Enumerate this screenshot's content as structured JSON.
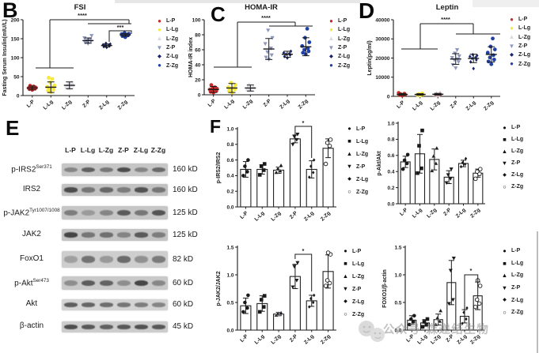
{
  "figure": {
    "panel_letters": {
      "B": "B",
      "C": "C",
      "D": "D",
      "E": "E",
      "F": "F"
    }
  },
  "chart_data": [
    {
      "id": "B",
      "type": "scatter",
      "title": "FSI",
      "ylabel": "Fasting Serum Insulin(mIU/L)",
      "categories": [
        "L-P",
        "L-Lg",
        "L-Zg",
        "Z-P",
        "Z-Lg",
        "Z-Zg"
      ],
      "ylim": [
        0,
        200
      ],
      "yticks": [
        0,
        50,
        100,
        150,
        200
      ],
      "ytick_decimals": 0,
      "legend_position": "right",
      "series": [
        {
          "name": "L-P",
          "marker": "circle",
          "color": "#c62a2a",
          "values": [
            15,
            17,
            18,
            19,
            20,
            20,
            21,
            22,
            24,
            26
          ],
          "mean": 20,
          "sd": 5
        },
        {
          "name": "L-Lg",
          "marker": "circle",
          "color": "#f6e83c",
          "values": [
            9,
            13,
            16,
            19,
            21,
            23,
            27,
            35,
            44,
            47
          ],
          "mean": 22,
          "sd": 14
        },
        {
          "name": "L-Zg",
          "marker": "triangle",
          "color": "#e7e7ef",
          "values": [
            19,
            24,
            27,
            30,
            34
          ],
          "mean": 27,
          "sd": 9
        },
        {
          "name": "Z-P",
          "marker": "triangle-down",
          "color": "#8f97bf",
          "values": [
            137,
            140,
            143,
            145,
            148,
            152,
            158
          ],
          "mean": 145,
          "sd": 7
        },
        {
          "name": "Z-Lg",
          "marker": "diamond",
          "color": "#18246e",
          "values": [
            127,
            129,
            131,
            132,
            133,
            134,
            136,
            138
          ],
          "mean": 132,
          "sd": 4
        },
        {
          "name": "Z-Zg",
          "marker": "circle",
          "color": "#2140a8",
          "values": [
            154,
            157,
            159,
            160,
            161,
            162,
            163,
            165
          ],
          "mean": 160,
          "sd": 4
        }
      ],
      "significance": [
        {
          "label": "****",
          "compare": "L groups vs Z groups"
        },
        {
          "label": "***",
          "compare": "Z-Lg vs Z-Zg"
        }
      ]
    },
    {
      "id": "C",
      "type": "scatter",
      "title": "HOMA-IR",
      "ylabel": "HOMA-IR index",
      "categories": [
        "L-P",
        "L-Lg",
        "L-Zg",
        "Z-P",
        "Z-Lg",
        "Z-Zg"
      ],
      "ylim": [
        0,
        100
      ],
      "yticks": [
        0,
        20,
        40,
        60,
        80,
        100
      ],
      "ytick_decimals": 0,
      "legend_position": "right",
      "series": [
        {
          "name": "L-P",
          "marker": "circle",
          "color": "#c62a2a",
          "values": [
            3,
            4,
            5,
            6,
            7,
            7,
            8,
            9,
            10,
            13
          ],
          "mean": 7,
          "sd": 4
        },
        {
          "name": "L-Lg",
          "marker": "circle",
          "color": "#f6e83c",
          "values": [
            3,
            5,
            7,
            8,
            9,
            10,
            13,
            16
          ],
          "mean": 9,
          "sd": 6
        },
        {
          "name": "L-Zg",
          "marker": "triangle",
          "color": "#e7e7ef",
          "values": [
            6,
            8,
            10,
            13
          ],
          "mean": 9,
          "sd": 4
        },
        {
          "name": "Z-P",
          "marker": "triangle-down",
          "color": "#8f97bf",
          "values": [
            47,
            50,
            53,
            57,
            62,
            68,
            76,
            86
          ],
          "mean": 61,
          "sd": 14
        },
        {
          "name": "Z-Lg",
          "marker": "diamond",
          "color": "#18246e",
          "values": [
            49,
            51,
            53,
            54,
            55,
            56,
            58
          ],
          "mean": 54,
          "sd": 4
        },
        {
          "name": "Z-Zg",
          "marker": "circle",
          "color": "#2140a8",
          "values": [
            54,
            56,
            58,
            60,
            62,
            65,
            70,
            76,
            88
          ],
          "mean": 64,
          "sd": 12
        }
      ],
      "significance": [
        {
          "label": "****",
          "compare": "L groups vs Z groups"
        }
      ]
    },
    {
      "id": "D",
      "type": "scatter",
      "title": "Leptin",
      "ylabel": "Leptin(pg/ml)",
      "categories": [
        "L-P",
        "L-Lg",
        "L-Zg",
        "Z-P",
        "Z-Lg",
        "Z-Zg"
      ],
      "ylim": [
        0,
        40000
      ],
      "yticks": [
        0,
        10000,
        20000,
        30000,
        40000
      ],
      "ytick_decimals": 0,
      "legend_position": "right",
      "series": [
        {
          "name": "L-P",
          "marker": "circle",
          "color": "#c62a2a",
          "values": [
            400,
            700,
            900,
            1100,
            1400,
            1800
          ],
          "mean": 1000,
          "sd": 500
        },
        {
          "name": "L-Lg",
          "marker": "circle",
          "color": "#f6e83c",
          "values": [
            500,
            800,
            1000,
            1200,
            1500
          ],
          "mean": 1000,
          "sd": 400
        },
        {
          "name": "L-Zg",
          "marker": "triangle",
          "color": "#e7a0a0",
          "values": [
            600,
            900,
            1100,
            1400,
            1700
          ],
          "mean": 1100,
          "sd": 450
        },
        {
          "name": "Z-P",
          "marker": "triangle-down",
          "color": "#8f97bf",
          "values": [
            14800,
            16500,
            18000,
            19000,
            19500,
            20200,
            21000,
            22500,
            24300
          ],
          "mean": 19500,
          "sd": 2800
        },
        {
          "name": "Z-Lg",
          "marker": "diamond",
          "color": "#18246e",
          "values": [
            14500,
            18000,
            19000,
            19800,
            20300,
            20800,
            21300,
            21800
          ],
          "mean": 19800,
          "sd": 2200
        },
        {
          "name": "Z-Zg",
          "marker": "circle",
          "color": "#2140a8",
          "values": [
            16800,
            18200,
            19200,
            20300,
            21500,
            22800,
            24500,
            26000,
            30200
          ],
          "mean": 21900,
          "sd": 4000
        }
      ],
      "significance": [
        {
          "label": "****",
          "compare": "L groups vs Z groups"
        }
      ]
    },
    {
      "id": "F1",
      "type": "bar",
      "ylabel": "p-IRS2/IRS2",
      "categories": [
        "L-P",
        "L-Lg",
        "L-Zg",
        "Z-P",
        "Z-Lg",
        "Z-Zg"
      ],
      "ylim": [
        0,
        1.0
      ],
      "yticks": [
        0,
        0.2,
        0.4,
        0.6,
        0.8,
        1.0
      ],
      "ytick_decimals": 1,
      "values": [
        0.48,
        0.48,
        0.47,
        0.87,
        0.48,
        0.75
      ],
      "errors": [
        0.1,
        0.06,
        0.04,
        0.05,
        0.11,
        0.12
      ],
      "points": [
        [
          0.4,
          0.45,
          0.52,
          0.6
        ],
        [
          0.41,
          0.47,
          0.52,
          0.55
        ],
        [
          0.44,
          0.46,
          0.49,
          0.53
        ],
        [
          0.8,
          0.86,
          0.9,
          0.93
        ],
        [
          0.38,
          0.44,
          0.52,
          0.6
        ],
        [
          0.55,
          0.78,
          0.82,
          0.86
        ]
      ],
      "point_markers": [
        "circle",
        "square",
        "triangle",
        "triangle-down",
        "diamond",
        "open-circle"
      ],
      "significance": [
        {
          "label": "*",
          "compare": "Z-P vs Z-Lg"
        }
      ]
    },
    {
      "id": "F2",
      "type": "bar",
      "ylabel": "p-Akt/Akt",
      "categories": [
        "L-P",
        "L-Lg",
        "L-Zg",
        "Z-P",
        "Z-Lg",
        "Z-Zg"
      ],
      "ylim": [
        0,
        1.0
      ],
      "yticks": [
        0,
        0.2,
        0.4,
        0.6,
        0.8,
        1.0
      ],
      "ytick_decimals": 1,
      "values": [
        0.52,
        0.62,
        0.55,
        0.33,
        0.5,
        0.38
      ],
      "errors": [
        0.07,
        0.24,
        0.13,
        0.08,
        0.04,
        0.05
      ],
      "points": [
        [
          0.43,
          0.5,
          0.54,
          0.61
        ],
        [
          0.38,
          0.44,
          0.72,
          0.91
        ],
        [
          0.41,
          0.5,
          0.59,
          0.69
        ],
        [
          0.26,
          0.31,
          0.36,
          0.43
        ],
        [
          0.46,
          0.49,
          0.51,
          0.56
        ],
        [
          0.31,
          0.37,
          0.4,
          0.43
        ]
      ],
      "point_markers": [
        "circle",
        "square",
        "triangle",
        "triangle-down",
        "diamond",
        "open-circle"
      ],
      "significance": []
    },
    {
      "id": "F3",
      "type": "bar",
      "ylabel": "p-JAK2/JAK2",
      "categories": [
        "L-P",
        "L-Lg",
        "L-Zg",
        "Z-P",
        "Z-Lg",
        "Z-Zg"
      ],
      "ylim": [
        0,
        1.5
      ],
      "yticks": [
        0,
        0.5,
        1.0,
        1.5
      ],
      "ytick_decimals": 1,
      "values": [
        0.44,
        0.48,
        0.29,
        0.97,
        0.53,
        1.06
      ],
      "errors": [
        0.14,
        0.14,
        0.03,
        0.22,
        0.1,
        0.3
      ],
      "points": [
        [
          0.33,
          0.4,
          0.5,
          0.63
        ],
        [
          0.33,
          0.42,
          0.55,
          0.62
        ],
        [
          0.27,
          0.29,
          0.3,
          0.31
        ],
        [
          0.78,
          0.9,
          1.15,
          1.22
        ],
        [
          0.42,
          0.5,
          0.57,
          0.63
        ],
        [
          0.8,
          0.85,
          0.9,
          1.37,
          1.4
        ]
      ],
      "point_markers": [
        "circle",
        "square",
        "triangle",
        "triangle-down",
        "diamond",
        "open-circle"
      ],
      "significance": [
        {
          "label": "*",
          "compare": "Z-P vs Z-Lg"
        }
      ]
    },
    {
      "id": "F4",
      "type": "bar",
      "ylabel": "FOXO1/β-actin",
      "categories": [
        "L-P",
        "L-Lg",
        "L-Zg",
        "Z-P",
        "Z-Lg",
        "Z-Zg"
      ],
      "ylim": [
        0,
        1.5
      ],
      "yticks": [
        0,
        0.5,
        1.0,
        1.5
      ],
      "ytick_decimals": 1,
      "values": [
        0.18,
        0.13,
        0.19,
        0.86,
        0.25,
        0.62
      ],
      "errors": [
        0.08,
        0.06,
        0.1,
        0.4,
        0.12,
        0.25
      ],
      "points": [
        [
          0.1,
          0.15,
          0.2,
          0.26
        ],
        [
          0.06,
          0.1,
          0.15,
          0.2
        ],
        [
          0.1,
          0.16,
          0.22,
          0.35
        ],
        [
          0.48,
          0.55,
          1.08,
          1.3
        ],
        [
          0.12,
          0.2,
          0.32,
          0.4
        ],
        [
          0.42,
          0.48,
          0.55,
          0.8,
          0.9
        ]
      ],
      "point_markers": [
        "circle",
        "square",
        "triangle",
        "triangle-down",
        "diamond",
        "open-circle"
      ],
      "significance": [
        {
          "label": "*",
          "compare": "Z-Lg vs Z-Zg"
        }
      ]
    }
  ],
  "panel_E": {
    "lanes": [
      "L-P",
      "L-Lg",
      "L-Zg",
      "Z-P",
      "Z-Lg",
      "Z-Zg"
    ],
    "rows": [
      {
        "base": "p-IRS2",
        "sup": "Ser371",
        "kd": "160 kD",
        "bands": [
          0.45,
          0.72,
          0.55,
          0.85,
          0.45,
          0.65
        ]
      },
      {
        "base": "IRS2",
        "sup": "",
        "kd": "160 kD",
        "bands": [
          0.85,
          0.55,
          0.65,
          0.5,
          0.8,
          0.55
        ]
      },
      {
        "base": "p-JAK2",
        "sup": "Tyr1007/1008",
        "kd": "125 kD",
        "bands": [
          0.5,
          0.3,
          0.45,
          0.75,
          0.55,
          0.8
        ]
      },
      {
        "base": "JAK2",
        "sup": "",
        "kd": "125 kD",
        "bands": [
          0.9,
          0.55,
          0.6,
          0.45,
          0.75,
          0.5
        ]
      },
      {
        "base": "FoxO1",
        "sup": "",
        "kd": "82 kD",
        "bands": [
          0.3,
          0.6,
          0.35,
          0.65,
          0.4,
          0.55
        ]
      },
      {
        "base": "p-Akt",
        "sup": "Ser473",
        "kd": "60 kD",
        "bands": [
          0.4,
          0.75,
          0.7,
          0.4,
          0.9,
          0.45
        ]
      },
      {
        "base": "Akt",
        "sup": "",
        "kd": "60 kD",
        "bands": [
          0.75,
          0.7,
          0.65,
          0.6,
          0.55,
          0.5
        ]
      },
      {
        "base": "β-actin",
        "sup": "",
        "kd": "45 kD",
        "bands": [
          0.85,
          0.78,
          0.72,
          0.78,
          0.82,
          0.78
        ]
      }
    ]
  },
  "bcd_legend": [
    {
      "label": "L-P",
      "marker": "circle",
      "color": "#c62a2a"
    },
    {
      "label": "L-Lg",
      "marker": "circle",
      "color": "#f6e83c"
    },
    {
      "label": "L-Zg",
      "marker": "triangle",
      "color": "#d9d9e4"
    },
    {
      "label": "Z-P",
      "marker": "triangle-down",
      "color": "#8f97bf"
    },
    {
      "label": "Z-Lg",
      "marker": "diamond",
      "color": "#18246e"
    },
    {
      "label": "Z-Zg",
      "marker": "circle",
      "color": "#2140a8"
    }
  ],
  "f_legend": [
    {
      "label": "L-P",
      "marker": "circle"
    },
    {
      "label": "L-Lg",
      "marker": "square"
    },
    {
      "label": "L-Zg",
      "marker": "triangle"
    },
    {
      "label": "Z-P",
      "marker": "triangle-down"
    },
    {
      "label": "Z-Lg",
      "marker": "diamond"
    },
    {
      "label": "Z-Zg",
      "marker": "open-circle"
    }
  ],
  "watermark": {
    "text": "公众号·森递结生物"
  }
}
